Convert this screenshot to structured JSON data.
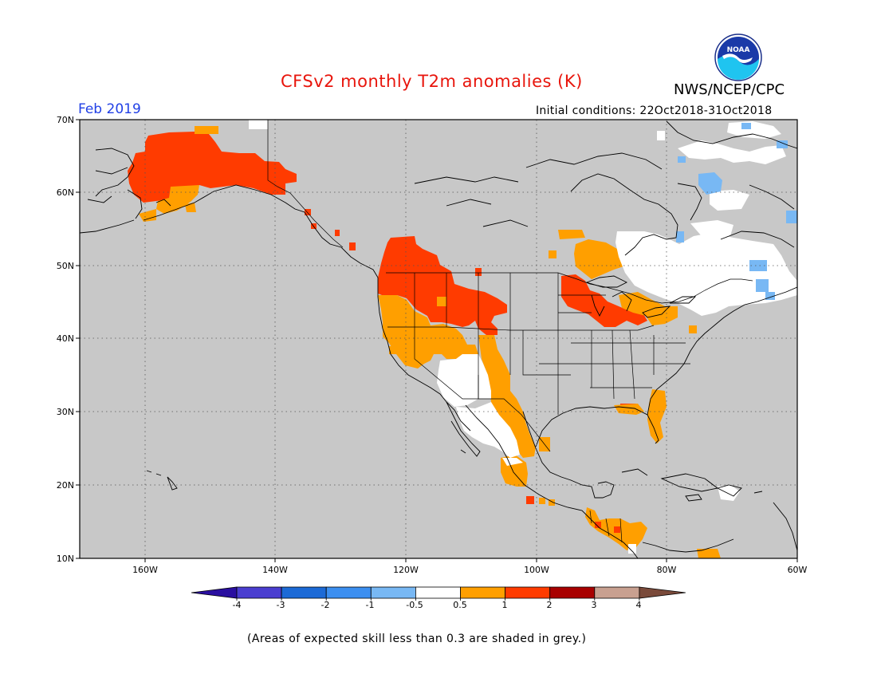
{
  "header": {
    "title": "CFSv2 monthly T2m anomalies (K)",
    "org": "NWS/NCEP/CPC",
    "period": "Feb 2019",
    "initial_conditions": "Initial conditions: 22Oct2018-31Oct2018",
    "logo_text": "NOAA"
  },
  "map": {
    "lat_ticks": [
      "70N",
      "60N",
      "50N",
      "40N",
      "30N",
      "20N",
      "10N"
    ],
    "lon_ticks": [
      "160W",
      "140W",
      "120W",
      "100W",
      "80W",
      "60W"
    ],
    "lat_range": [
      10,
      70
    ],
    "lon_range": [
      -170,
      -60
    ],
    "grey_meaning": "skill < 0.3"
  },
  "colorbar": {
    "labels": [
      "-4",
      "-3",
      "-2",
      "-1",
      "-0.5",
      "0.5",
      "1",
      "2",
      "3",
      "4"
    ],
    "colors": [
      "#2a0fa0",
      "#4a3ed0",
      "#1c6ad6",
      "#3c8ff0",
      "#78b8f4",
      "#ffffff",
      "#ff9f00",
      "#ff3b00",
      "#a80000",
      "#c8a090",
      "#7a4a3a"
    ],
    "unit": "K"
  },
  "footnote": "(Areas of expected skill less than 0.3 are shaded in grey.)",
  "colors": {
    "background": "#ffffff",
    "map_grey": "#c8c8c8",
    "title_red": "#e8150c",
    "period_blue": "#2140e6",
    "orange": "#ff9f00",
    "red": "#ff3b00",
    "light_blue": "#78b8f4",
    "white": "#ffffff"
  }
}
